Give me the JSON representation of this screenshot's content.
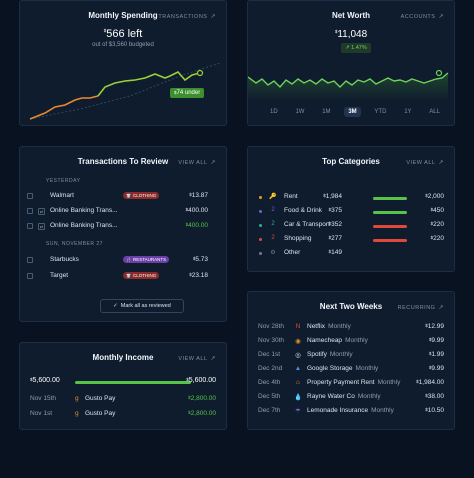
{
  "spending": {
    "title": "Monthly Spending",
    "link": "TRANSACTIONS",
    "amount_symbol": "$",
    "amount": "566 left",
    "budget_text": "out of $3,560 budgeted",
    "under_symbol": "$",
    "under_badge": "74 under"
  },
  "networth": {
    "title": "Net Worth",
    "link": "ACCOUNTS",
    "amount_symbol": "$",
    "amount": "11,048",
    "change": "1.47%",
    "ranges": [
      "1D",
      "1W",
      "1M",
      "3M",
      "YTD",
      "1Y",
      "ALL"
    ],
    "active_range": "3M"
  },
  "transactions": {
    "title": "Transactions To Review",
    "link": "VIEW ALL",
    "sections": [
      {
        "label": "YESTERDAY"
      },
      {
        "label": "SUN, NOVEMBER 27"
      }
    ],
    "rows": [
      {
        "name": "Walmart",
        "category": "CLOTHING",
        "category_icon": "shirt-icon",
        "category_color": "#8a2a2a",
        "amount": "13.87",
        "green": false,
        "split": false
      },
      {
        "name": "Online Banking Trans...",
        "category": "",
        "amount": "400.00",
        "green": false,
        "split": true
      },
      {
        "name": "Online Banking Trans...",
        "category": "",
        "amount": "400.00",
        "green": true,
        "split": true
      },
      {
        "name": "Starbucks",
        "category": "RESTAURANTS",
        "category_icon": "utensils-icon",
        "category_color": "#6b3fa8",
        "amount": "5.73",
        "green": false,
        "split": false
      },
      {
        "name": "Target",
        "category": "CLOTHING",
        "category_icon": "shirt-icon",
        "category_color": "#8a2a2a",
        "amount": "23.18",
        "green": false,
        "split": false
      }
    ],
    "review_button": "Mark all as reviewed"
  },
  "categories": {
    "title": "Top Categories",
    "link": "VIEW ALL",
    "rows": [
      {
        "name": "Rent",
        "dot": "#e0a12b",
        "icon": "🔑",
        "icon_name": "key-icon",
        "spent": "1,984",
        "budget": "2,000",
        "bar_color": "#58c24a",
        "fill": 1.0
      },
      {
        "name": "Food & Drink",
        "dot": "#7a5ad6",
        "icon": "2",
        "icon_name": "food-icon",
        "spent": "375",
        "budget": "450",
        "bar_color": "#58c24a",
        "fill": 1.0
      },
      {
        "name": "Car & Transport",
        "dot": "#2fa8a0",
        "icon": "2",
        "icon_name": "car-icon",
        "spent": "352",
        "budget": "220",
        "bar_color": "#e0483c",
        "fill": 1.0
      },
      {
        "name": "Shopping",
        "dot": "#e0483c",
        "icon": "2",
        "icon_name": "shopping-icon",
        "spent": "277",
        "budget": "220",
        "bar_color": "#e0483c",
        "fill": 1.0
      },
      {
        "name": "Other",
        "dot": "#6d7c92",
        "icon": "⚙",
        "icon_name": "other-icon",
        "spent": "149",
        "budget": "",
        "bar_color": "",
        "fill": 0
      }
    ]
  },
  "income": {
    "title": "Monthly Income",
    "link": "VIEW ALL",
    "received": "5,600.00",
    "expected": "5,600.00",
    "progress": 1.0,
    "rows": [
      {
        "date": "Nov 15th",
        "name": "Gusto Pay",
        "amount": "2,800.00"
      },
      {
        "date": "Nov 1st",
        "name": "Gusto Pay",
        "amount": "2,800.00"
      }
    ]
  },
  "upcoming": {
    "title": "Next Two Weeks",
    "link": "RECURRING",
    "rows": [
      {
        "date": "Nov 28th",
        "icon": "N",
        "icon_name": "netflix-icon",
        "icon_color": "#e0483c",
        "name": "Netflix",
        "freq": "Monthly",
        "amount": "12.99"
      },
      {
        "date": "Nov 30th",
        "icon": "◉",
        "icon_name": "namecheap-icon",
        "icon_color": "#e08a2b",
        "name": "Namecheap",
        "freq": "Monthly",
        "amount": "9.99"
      },
      {
        "date": "Dec 1st",
        "icon": "◎",
        "icon_name": "spotify-icon",
        "icon_color": "#dce4ef",
        "name": "Spotify",
        "freq": "Monthly",
        "amount": "1.99"
      },
      {
        "date": "Dec 2nd",
        "icon": "▲",
        "icon_name": "google-storage-icon",
        "icon_color": "#4a8fe0",
        "name": "Google Storage",
        "freq": "Monthly",
        "amount": "9.99"
      },
      {
        "date": "Dec 4th",
        "icon": "⌂",
        "icon_name": "house-icon",
        "icon_color": "#e0a12b",
        "name": "Property Payment Rent",
        "freq": "Monthly",
        "amount": "1,984.00"
      },
      {
        "date": "Dec 5th",
        "icon": "💧",
        "icon_name": "water-icon",
        "icon_color": "#4a8fe0",
        "name": "Rayne Water Co",
        "freq": "Monthly",
        "amount": "38.00"
      },
      {
        "date": "Dec 7th",
        "icon": "☂",
        "icon_name": "umbrella-icon",
        "icon_color": "#8a5ad6",
        "name": "Lemonade Insurance",
        "freq": "Monthly",
        "amount": "10.50"
      }
    ]
  },
  "currency_symbol": "$"
}
